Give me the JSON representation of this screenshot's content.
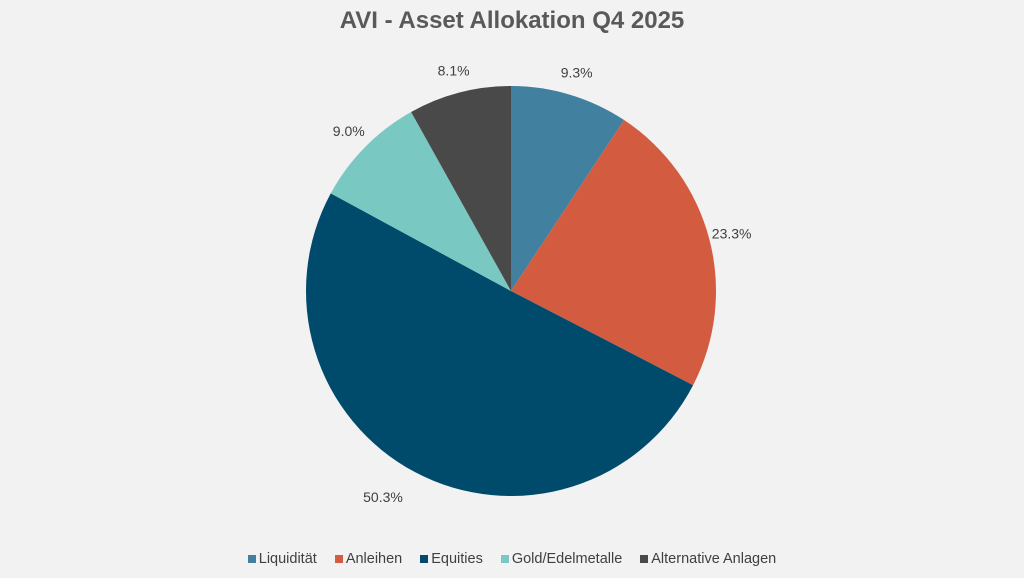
{
  "chart_data": {
    "type": "pie",
    "title": "AVI - Asset Allokation Q4 2025",
    "categories": [
      "Liquidität",
      "Anleihen",
      "Equities",
      "Gold/Edelmetalle",
      "Alternative Anlagen"
    ],
    "values": [
      9.3,
      23.3,
      50.3,
      9.0,
      8.1
    ],
    "labels": [
      "9.3%",
      "23.3%",
      "50.3%",
      "9.0%",
      "8.1%"
    ],
    "colors": [
      "#41809f",
      "#d35c40",
      "#004a6c",
      "#79c8c2",
      "#494949"
    ],
    "start_angle": "12 o'clock, clockwise",
    "legend_position": "bottom"
  },
  "legend": [
    {
      "label": "Liquidität",
      "color": "#41809f"
    },
    {
      "label": "Anleihen",
      "color": "#d35c40"
    },
    {
      "label": "Equities",
      "color": "#004a6c"
    },
    {
      "label": "Gold/Edelmetalle",
      "color": "#79c8c2"
    },
    {
      "label": "Alternative Anlagen",
      "color": "#494949"
    }
  ]
}
